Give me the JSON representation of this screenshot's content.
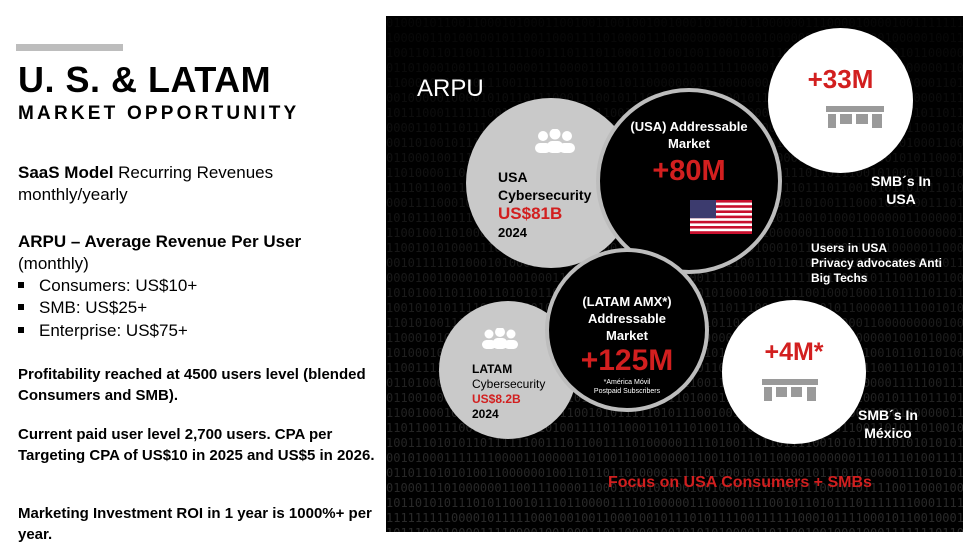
{
  "left": {
    "title": "U. S. & LATAM",
    "subtitle": "MARKET OPPORTUNITY",
    "saas_bold": "SaaS Model",
    "saas_rest": " Recurring Revenues",
    "saas_line2": "monthly/yearly",
    "arpu_heading": "ARPU – Average Revenue Per User",
    "arpu_sub": "(monthly)",
    "bullets": [
      "Consumers: US$10+",
      "SMB: US$25+",
      "Enterprise: US$75+"
    ],
    "note1": "Profitability reached at 4500 users level (blended Consumers and SMB).",
    "note2": "Current paid user level 2,700 users. CPA per Targeting CPA of US$10 in 2025 and US$5 in 2026.",
    "note3": "Marketing Investment ROI in 1 year is 1000%+ per year."
  },
  "panel": {
    "arpu_label": "ARPU",
    "usa_cyber": {
      "line1": "USA",
      "line2": "Cybersecurity",
      "value": "US$81B",
      "year": "2024"
    },
    "usa_market": {
      "line1": "(USA) Addressable",
      "line2": "Market",
      "value": "+80M"
    },
    "usa_smb": {
      "value": "+33M",
      "caption1": "SMB´s In",
      "caption2": "USA"
    },
    "usa_privacy": {
      "line1": "Users in USA",
      "line2": "Privacy advocates Anti",
      "line3": "Big Techs"
    },
    "latam_cyber": {
      "line1": "LATAM",
      "line2": "Cybersecurity",
      "value": "US$8.2B",
      "year": "2024"
    },
    "latam_market": {
      "line1": "(LATAM AMX*)",
      "line2": "Addressable",
      "line3": "Market",
      "value": "+125M",
      "foot1": "*América Móvil",
      "foot2": "Postpaid Subscribers"
    },
    "mex_smb": {
      "value": "+4M*",
      "caption1": "SMB´s In",
      "caption2": "México"
    },
    "focus": "Focus on USA Consumers + SMBs"
  },
  "colors": {
    "accent": "#d21f1f",
    "panel_bg": "#000000",
    "circle_gray": "#c9c9c9"
  }
}
